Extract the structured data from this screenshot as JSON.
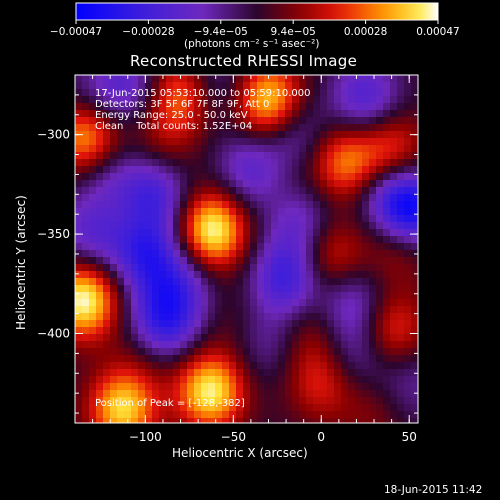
{
  "chart_data": {
    "type": "heatmap",
    "title": "Reconstructed RHESSI Image",
    "xlabel": "Heliocentric X (arcsec)",
    "ylabel": "Heliocentric Y (arcsec)",
    "xlim": [
      -140,
      55
    ],
    "ylim": [
      -445,
      -270
    ],
    "xticks": [
      -100,
      -50,
      0,
      50
    ],
    "xtick_labels": [
      "−100",
      "−50",
      "0",
      "50"
    ],
    "yticks": [
      -300,
      -350,
      -400
    ],
    "ytick_labels": [
      "−300",
      "−350",
      "−400"
    ],
    "colorbar": {
      "range": [
        -0.00047,
        0.00047
      ],
      "tick_labels": [
        "−0.00047",
        "−0.00028",
        "−9.4e−05",
        "9.4e−05",
        "0.00028",
        "0.00047"
      ],
      "unit_label": "(photons cm⁻² s⁻¹ asec⁻²)"
    },
    "annotations": {
      "time_range": "17-Jun-2015 05:53:10.000 to 05:59:10.000",
      "detectors": "Detectors: 3F 5F 6F 7F 8F 9F, Att 0",
      "energy": "Energy Range: 25.0 - 50.0 keV",
      "clean": "Clean    Total counts: 1.52E+04",
      "peak": "Position of Peak = [-128,-382]"
    },
    "sources": [
      {
        "x": -62,
        "y": -348,
        "value": 0.00047
      },
      {
        "x": -135,
        "y": -383,
        "value": 0.00047
      },
      {
        "x": -63,
        "y": -429,
        "value": 0.00044
      },
      {
        "x": -113,
        "y": -438,
        "value": 0.0004
      },
      {
        "x": -133,
        "y": -300,
        "value": 0.00041
      },
      {
        "x": -30,
        "y": -283,
        "value": 0.00042
      },
      {
        "x": -80,
        "y": -280,
        "value": 0.0003
      },
      {
        "x": 13,
        "y": -314,
        "value": 0.0003
      },
      {
        "x": 40,
        "y": -308,
        "value": 0.00026
      },
      {
        "x": 5,
        "y": -360,
        "value": 0.00024
      },
      {
        "x": 45,
        "y": -355,
        "value": 0.0002
      },
      {
        "x": 40,
        "y": -398,
        "value": 0.00025
      },
      {
        "x": 0,
        "y": -425,
        "value": 0.0002
      },
      {
        "x": -5,
        "y": -400,
        "value": 0.00012
      },
      {
        "x": -90,
        "y": -305,
        "value": 0.00012
      },
      {
        "x": -115,
        "y": -335,
        "value": 8e-05
      },
      {
        "x": -50,
        "y": -395,
        "value": 6e-05
      },
      {
        "x": -100,
        "y": -410,
        "value": 0.0001
      },
      {
        "x": 30,
        "y": -440,
        "value": 0.0001
      },
      {
        "x": -20,
        "y": -320,
        "value": 6e-05
      },
      {
        "x": -15,
        "y": -300,
        "value": -0.00018
      },
      {
        "x": -40,
        "y": -318,
        "value": -0.00022
      },
      {
        "x": -95,
        "y": -330,
        "value": -0.00028
      },
      {
        "x": -120,
        "y": -322,
        "value": -0.00018
      },
      {
        "x": -100,
        "y": -360,
        "value": -0.0003
      },
      {
        "x": -130,
        "y": -350,
        "value": -0.00022
      },
      {
        "x": -90,
        "y": -395,
        "value": -0.00034
      },
      {
        "x": -80,
        "y": -375,
        "value": -0.0002
      },
      {
        "x": -20,
        "y": -372,
        "value": -0.0003
      },
      {
        "x": 18,
        "y": -385,
        "value": -0.0002
      },
      {
        "x": -10,
        "y": -345,
        "value": -0.0002
      },
      {
        "x": 40,
        "y": -330,
        "value": -0.00022
      },
      {
        "x": 52,
        "y": -340,
        "value": -0.0004
      },
      {
        "x": 25,
        "y": -282,
        "value": -0.00025
      },
      {
        "x": -110,
        "y": -275,
        "value": -0.0002
      },
      {
        "x": -130,
        "y": -285,
        "value": -0.00015
      },
      {
        "x": 20,
        "y": -410,
        "value": -0.00015
      },
      {
        "x": 50,
        "y": -425,
        "value": -0.00012
      },
      {
        "x": -60,
        "y": -275,
        "value": -0.00015
      },
      {
        "x": -32,
        "y": -405,
        "value": -0.00012
      }
    ],
    "grid": false,
    "legend": "colorbar top"
  },
  "footer": {
    "timestamp": "18-Jun-2015 11:42"
  }
}
